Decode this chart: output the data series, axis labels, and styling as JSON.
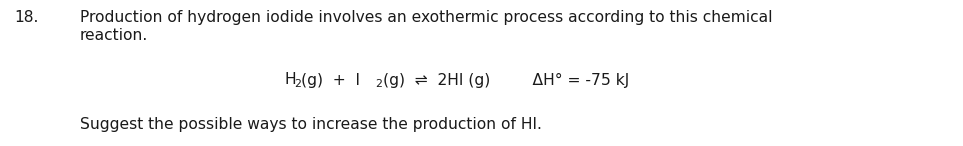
{
  "background_color": "#ffffff",
  "number": "18.",
  "line1": "Production of hydrogen iodide involves an exothermic process according to this chemical",
  "line2": "reaction.",
  "eq_H": "H",
  "eq_2a": "2",
  "eq_mid": "(g)  +  I",
  "eq_2b": "2",
  "eq_right": "(g)  ⇌  2HI (g)",
  "eq_dH": "    ΔH° = -75 kJ",
  "footer": "Suggest the possible ways to increase the production of HI.",
  "font_family": "DejaVu Sans",
  "fontsize": 11.2,
  "sub_fontsize": 7.8,
  "text_color": "#1a1a1a",
  "fig_width": 9.63,
  "fig_height": 1.46,
  "dpi": 100
}
